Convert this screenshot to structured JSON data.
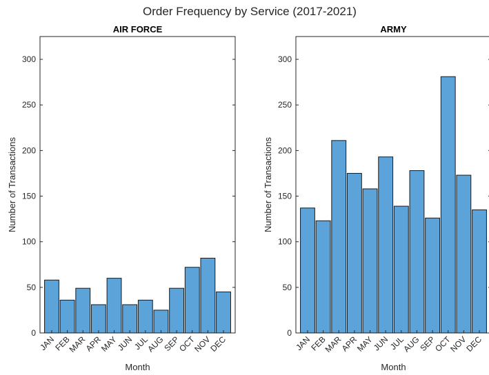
{
  "chart_data": [
    {
      "type": "bar",
      "title": "AIR FORCE",
      "xlabel": "Month",
      "ylabel": "Number of Transactions",
      "categories": [
        "JAN",
        "FEB",
        "MAR",
        "APR",
        "MAY",
        "JUN",
        "JUL",
        "AUG",
        "SEP",
        "OCT",
        "NOV",
        "DEC"
      ],
      "values": [
        58,
        36,
        49,
        31,
        60,
        31,
        36,
        25,
        49,
        72,
        82,
        45
      ],
      "ylim": [
        0,
        325
      ],
      "yticks": [
        0,
        50,
        100,
        150,
        200,
        250,
        300
      ],
      "color": "#5ba3d9",
      "grid": false
    },
    {
      "type": "bar",
      "title": "ARMY",
      "xlabel": "Month",
      "ylabel": "Number of Transactions",
      "categories": [
        "JAN",
        "FEB",
        "MAR",
        "APR",
        "MAY",
        "JUN",
        "JUL",
        "AUG",
        "SEP",
        "OCT",
        "NOV",
        "DEC"
      ],
      "values": [
        137,
        123,
        211,
        175,
        158,
        193,
        139,
        178,
        126,
        281,
        173,
        135
      ],
      "ylim": [
        0,
        325
      ],
      "yticks": [
        0,
        50,
        100,
        150,
        200,
        250,
        300
      ],
      "color": "#5ba3d9",
      "grid": false
    }
  ],
  "figure": {
    "suptitle": "Order Frequency by Service (2017-2021)"
  }
}
